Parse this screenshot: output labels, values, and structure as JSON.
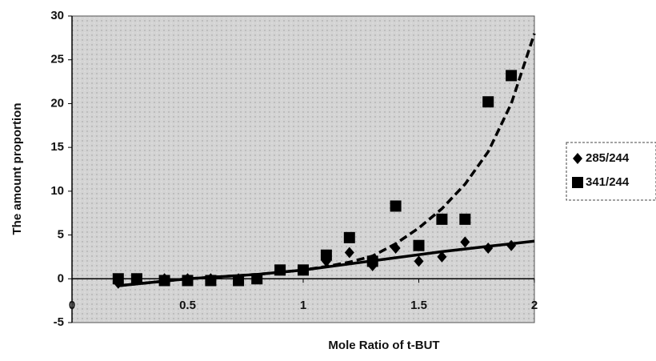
{
  "chart_data": {
    "type": "scatter",
    "x_label": "Mole Ratio of t-BUT",
    "y_label": "The amount proportion",
    "xlim": [
      0,
      2
    ],
    "xticks": [
      0,
      0.5,
      1,
      1.5,
      2
    ],
    "ylim": [
      -5,
      30
    ],
    "yticks": [
      -5,
      0,
      5,
      10,
      15,
      20,
      25,
      30
    ],
    "legend": "right",
    "series": [
      {
        "name": "285/244",
        "color": "#000000",
        "marker": "diamond",
        "x": [
          0.2,
          0.28,
          0.4,
          0.5,
          0.6,
          0.72,
          0.8,
          0.9,
          1.0,
          1.1,
          1.2,
          1.3,
          1.4,
          1.5,
          1.6,
          1.7,
          1.8,
          1.9
        ],
        "values": [
          -0.5,
          0,
          0,
          0,
          0,
          0,
          0,
          1,
          1,
          2,
          3,
          1.5,
          3.5,
          2,
          2.5,
          4.2,
          3.5,
          3.8
        ],
        "trendline": {
          "style": "solid",
          "x": [
            0.2,
            0.5,
            0.8,
            1.0,
            1.2,
            1.4,
            1.6,
            1.8,
            2.0
          ],
          "values": [
            -0.8,
            0,
            0.5,
            1,
            1.7,
            2.4,
            3.1,
            3.7,
            4.3
          ]
        }
      },
      {
        "name": "341/244",
        "color": "#000000",
        "marker": "square",
        "x": [
          0.2,
          0.28,
          0.4,
          0.5,
          0.6,
          0.72,
          0.8,
          0.9,
          1.0,
          1.1,
          1.2,
          1.3,
          1.4,
          1.5,
          1.6,
          1.7,
          1.8,
          1.9
        ],
        "values": [
          0,
          0,
          -0.2,
          -0.2,
          -0.2,
          -0.2,
          0,
          1,
          1,
          2.7,
          4.7,
          2,
          8.3,
          3.8,
          6.8,
          6.8,
          20.2,
          23.2
        ],
        "trendline": {
          "style": "dashed",
          "x": [
            0.2,
            0.5,
            0.8,
            1.0,
            1.1,
            1.2,
            1.3,
            1.4,
            1.5,
            1.6,
            1.7,
            1.8,
            1.9,
            2.0
          ],
          "values": [
            -0.8,
            0,
            0.5,
            1,
            1.4,
            1.9,
            2.6,
            4,
            5.8,
            8,
            10.8,
            14.5,
            20,
            28
          ]
        }
      }
    ]
  }
}
